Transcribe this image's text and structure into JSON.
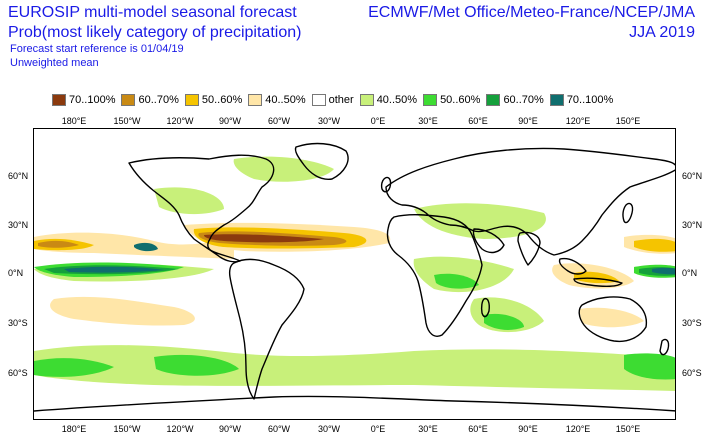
{
  "header": {
    "title": "EUROSIP multi-model seasonal forecast",
    "subtitle": "Prob(most likely category of precipitation)",
    "forecast_ref": "Forecast start reference is 01/04/19",
    "weighting": "Unweighted mean",
    "sources": "ECMWF/Met Office/Meteo-France/NCEP/JMA",
    "period": "JJA 2019"
  },
  "legend": [
    {
      "label": "70..100%",
      "color": "#8b3a0e"
    },
    {
      "label": "60..70%",
      "color": "#c98a14"
    },
    {
      "label": "50..60%",
      "color": "#f5c400"
    },
    {
      "label": "40..50%",
      "color": "#ffe6a8"
    },
    {
      "label": "other",
      "color": "#ffffff"
    },
    {
      "label": "40..50%",
      "color": "#c8f07a"
    },
    {
      "label": "50..60%",
      "color": "#3ddc32"
    },
    {
      "label": "60..70%",
      "color": "#15a03c"
    },
    {
      "label": "70..100%",
      "color": "#0f6e6e"
    }
  ],
  "axes": {
    "lon_labels": [
      "180°E",
      "150°W",
      "120°W",
      "90°W",
      "60°W",
      "30°W",
      "0°E",
      "30°E",
      "60°E",
      "90°E",
      "120°E",
      "150°E"
    ],
    "lat_left": [
      "60°N",
      "30°N",
      "0°N",
      "30°S",
      "60°S"
    ],
    "lat_right": [
      "60°N",
      "30°N",
      "0°N",
      "30°S",
      "60°S"
    ]
  },
  "map": {
    "coastline_color": "#000000",
    "dry_colors": [
      "#ffe6a8",
      "#f5c400",
      "#c98a14",
      "#8b3a0e"
    ],
    "wet_colors": [
      "#c8f07a",
      "#3ddc32",
      "#15a03c",
      "#0f6e6e"
    ]
  }
}
